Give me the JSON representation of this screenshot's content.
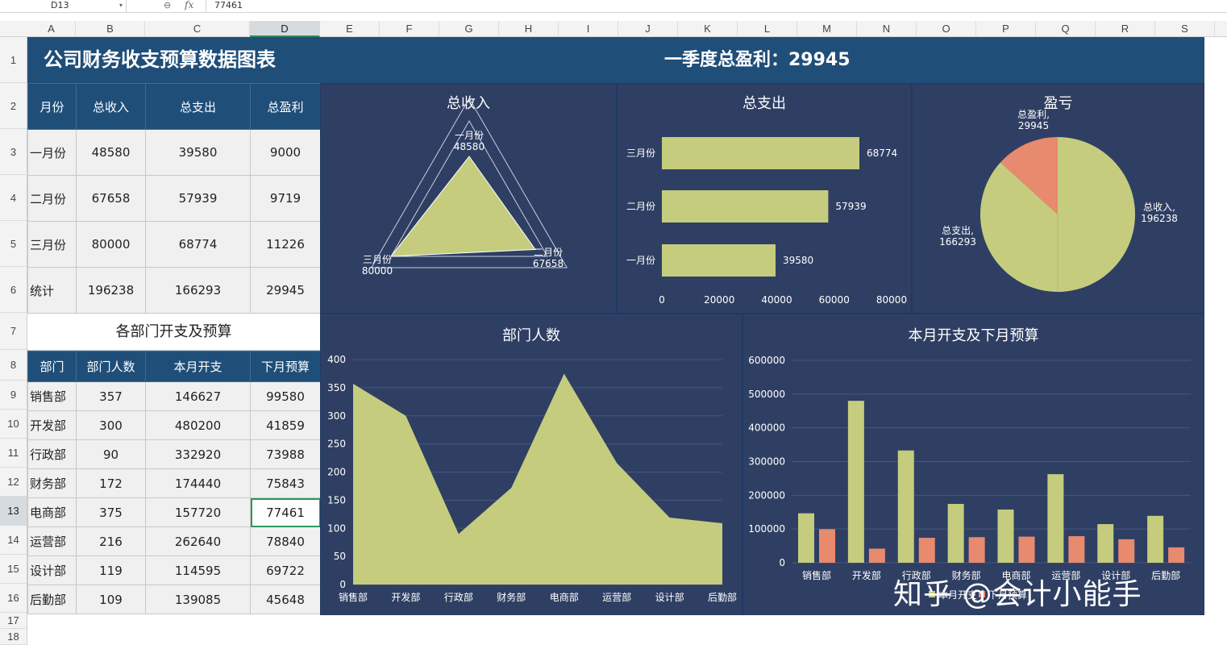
{
  "formula_bar": {
    "name_box": "D13",
    "formula": "77461"
  },
  "columns": [
    "A",
    "B",
    "C",
    "D",
    "E",
    "F",
    "G",
    "H",
    "I",
    "J",
    "K",
    "L",
    "M",
    "N",
    "O",
    "P",
    "Q",
    "R",
    "S"
  ],
  "rows": [
    "1",
    "2",
    "3",
    "4",
    "5",
    "6",
    "7",
    "8",
    "9",
    "10",
    "11",
    "12",
    "13",
    "14",
    "15",
    "16",
    "17",
    "18"
  ],
  "title": {
    "left": "公司财务收支预算数据图表",
    "right": "一季度总盈利：29945"
  },
  "summary": {
    "headers": [
      "月份",
      "总收入",
      "总支出",
      "总盈利"
    ],
    "rows": [
      [
        "一月份",
        "48580",
        "39580",
        "9000"
      ],
      [
        "二月份",
        "67658",
        "57939",
        "9719"
      ],
      [
        "三月份",
        "80000",
        "68774",
        "11226"
      ],
      [
        "统计",
        "196238",
        "166293",
        "29945"
      ]
    ]
  },
  "dept_section_title": "各部门开支及预算",
  "dept": {
    "headers": [
      "部门",
      "部门人数",
      "本月开支",
      "下月预算"
    ],
    "rows": [
      [
        "销售部",
        "357",
        "146627",
        "99580"
      ],
      [
        "开发部",
        "300",
        "480200",
        "41859"
      ],
      [
        "行政部",
        "90",
        "332920",
        "73988"
      ],
      [
        "财务部",
        "172",
        "174440",
        "75843"
      ],
      [
        "电商部",
        "375",
        "157720",
        "77461"
      ],
      [
        "运营部",
        "216",
        "262640",
        "78840"
      ],
      [
        "设计部",
        "119",
        "114595",
        "69722"
      ],
      [
        "后勤部",
        "109",
        "139085",
        "45648"
      ]
    ]
  },
  "colors": {
    "header_blue": "#1f4e79",
    "dash_bg": "#2f3f63",
    "series_green": "#c5cc7e",
    "series_salmon": "#e88a6e",
    "selection": "#2a9a5e"
  },
  "chart_data": [
    {
      "type": "radar",
      "title": "总收入",
      "categories": [
        "一月份",
        "二月份",
        "三月份"
      ],
      "values": [
        48580,
        67658,
        80000
      ],
      "point_labels": [
        "一月份\n48580",
        "二月份\n67658",
        "三月份\n80000"
      ]
    },
    {
      "type": "bar",
      "orientation": "horizontal",
      "title": "总支出",
      "categories": [
        "一月份",
        "二月份",
        "三月份"
      ],
      "values": [
        39580,
        57939,
        68774
      ],
      "xlim": [
        0,
        80000
      ],
      "xticks": [
        "0",
        "20000",
        "40000",
        "60000",
        "80000"
      ]
    },
    {
      "type": "pie",
      "title": "盈亏",
      "categories": [
        "总收入",
        "总支出",
        "总盈利"
      ],
      "values": [
        196238,
        166293,
        29945
      ],
      "labels": [
        "总收入,\n196238",
        "总支出,\n166293",
        "总盈利,\n29945"
      ]
    },
    {
      "type": "area",
      "title": "部门人数",
      "categories": [
        "销售部",
        "开发部",
        "行政部",
        "财务部",
        "电商部",
        "运营部",
        "设计部",
        "后勤部"
      ],
      "values": [
        357,
        300,
        90,
        172,
        375,
        216,
        119,
        109
      ],
      "ylim": [
        0,
        400
      ],
      "yticks": [
        "0",
        "50",
        "100",
        "150",
        "200",
        "250",
        "300",
        "350",
        "400"
      ]
    },
    {
      "type": "bar",
      "title": "本月开支及下月预算",
      "categories": [
        "销售部",
        "开发部",
        "行政部",
        "财务部",
        "电商部",
        "运营部",
        "设计部",
        "后勤部"
      ],
      "series": [
        {
          "name": "本月开支",
          "values": [
            146627,
            480200,
            332920,
            174440,
            157720,
            262640,
            114595,
            139085
          ]
        },
        {
          "name": "下月预算",
          "values": [
            99580,
            41859,
            73988,
            75843,
            77461,
            78840,
            69722,
            45648
          ]
        }
      ],
      "ylim": [
        0,
        600000
      ],
      "yticks": [
        "0",
        "100000",
        "200000",
        "300000",
        "400000",
        "500000",
        "600000"
      ],
      "legend": "bottom"
    }
  ],
  "watermark": "知乎 @会计小能手"
}
